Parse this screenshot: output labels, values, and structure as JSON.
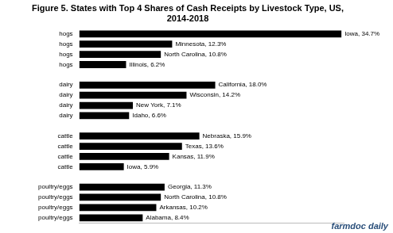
{
  "chart_data": {
    "type": "bar",
    "orientation": "horizontal",
    "title": "Figure 5. States with Top 4 Shares of Cash Receipts by Livestock Type, US, 2014-2018",
    "annotation": "farmdoc daily",
    "categories": [
      "hogs",
      "hogs",
      "hogs",
      "hogs",
      null,
      "dairy",
      "dairy",
      "dairy",
      "dairy",
      null,
      "cattle",
      "cattle",
      "cattle",
      "cattle",
      null,
      "poultry/eggs",
      "poultry/eggs",
      "poultry/eggs",
      "poultry/eggs"
    ],
    "values": [
      34.7,
      12.3,
      10.8,
      6.2,
      null,
      18.0,
      14.2,
      7.1,
      6.6,
      null,
      15.9,
      13.6,
      11.9,
      5.9,
      null,
      11.3,
      10.8,
      10.2,
      8.4
    ],
    "value_labels": [
      "Iowa, 34.7%",
      "Minnesota, 12.3%",
      "North Carolina, 10.8%",
      "Illinois, 6.2%",
      null,
      "California, 18.0%",
      "Wisconsin, 14.2%",
      "New York, 7.1%",
      "Idaho, 6.6%",
      null,
      "Nebraska, 15.9%",
      "Texas, 13.6%",
      "Kansas, 11.9%",
      "Iowa, 5.9%",
      null,
      "Georgia, 11.3%",
      "North Carolina, 10.8%",
      "Arkansas, 10.2%",
      "Alabama, 8.4%"
    ],
    "color": "#000000",
    "xlim": [
      0,
      35
    ],
    "data_labels": true,
    "grid": false,
    "tick_labels": "y"
  }
}
